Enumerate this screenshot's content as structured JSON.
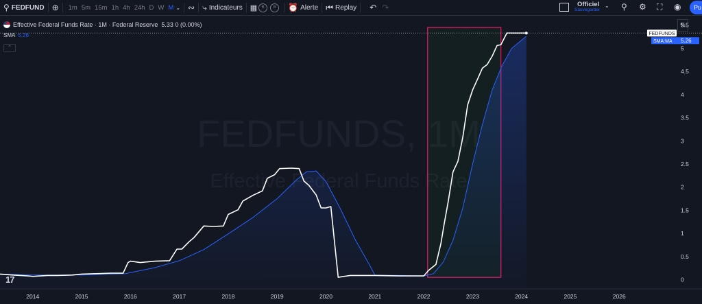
{
  "toolbar": {
    "symbol": "FEDFUND",
    "intervals": [
      "1m",
      "5m",
      "15m",
      "1h",
      "4h",
      "24h",
      "D",
      "W",
      "M"
    ],
    "active_interval": "M",
    "indicators_label": "Indicateurs",
    "circle_b1": "B",
    "circle_b2": "B",
    "alert_label": "Alerte",
    "replay_label": "Replay",
    "save_title": "Officiel",
    "save_sub": "Sauvegarder",
    "publish_label": "Pu"
  },
  "legend": {
    "series_title": "Effective Federal Funds Rate · 1M · Federal Reserve",
    "series_value": "5.33  0 (0.00%)",
    "sma_label": "SMA",
    "sma_value": "5.26"
  },
  "scale_mode": "%",
  "price_tags": {
    "fedfunds": "FEDFUNDS",
    "sma_name": "SMA:MA",
    "sma_value": "5.26"
  },
  "watermark": {
    "line1": "FEDFUNDS, 1M",
    "line2": "Effective Federal Funds Rate"
  },
  "brand": "17",
  "chart_data": {
    "type": "line",
    "colors": {
      "price": "#ffffff",
      "sma": "#2962ff",
      "highlight": "#e91e63",
      "background": "#131722"
    },
    "y_ticks": [
      "0",
      "0.5",
      "1",
      "1.5",
      "2",
      "2.5",
      "3",
      "3.5",
      "4",
      "4.5",
      "5",
      "5.5"
    ],
    "ylim": [
      -0.2,
      5.6
    ],
    "x_ticks": [
      "2014",
      "2015",
      "2016",
      "2017",
      "2018",
      "2019",
      "2020",
      "2021",
      "2022",
      "2023",
      "2024",
      "2025",
      "2026"
    ],
    "xlim": [
      2013.33,
      2026.6
    ],
    "series": [
      {
        "name": "FEDFUNDS",
        "x": [
          2013.33,
          2013.6,
          2013.9,
          2014.0,
          2014.3,
          2014.5,
          2014.8,
          2015.0,
          2015.3,
          2015.6,
          2015.85,
          2015.95,
          2016.0,
          2016.2,
          2016.5,
          2016.8,
          2016.95,
          2017.05,
          2017.2,
          2017.3,
          2017.5,
          2017.7,
          2017.9,
          2018.0,
          2018.2,
          2018.3,
          2018.5,
          2018.7,
          2018.8,
          2018.95,
          2019.05,
          2019.3,
          2019.45,
          2019.55,
          2019.65,
          2019.8,
          2019.9,
          2020.0,
          2020.1,
          2020.25,
          2020.5,
          2021.0,
          2021.5,
          2022.0,
          2022.1,
          2022.25,
          2022.35,
          2022.42,
          2022.5,
          2022.6,
          2022.7,
          2022.8,
          2022.9,
          2023.0,
          2023.1,
          2023.2,
          2023.3,
          2023.4,
          2023.5,
          2023.58,
          2023.7,
          2024.1
        ],
        "values": [
          0.12,
          0.1,
          0.08,
          0.07,
          0.09,
          0.09,
          0.1,
          0.12,
          0.13,
          0.14,
          0.14,
          0.37,
          0.4,
          0.37,
          0.4,
          0.41,
          0.66,
          0.66,
          0.82,
          0.91,
          1.16,
          1.15,
          1.16,
          1.41,
          1.51,
          1.7,
          1.82,
          1.92,
          2.19,
          2.27,
          2.4,
          2.41,
          2.4,
          2.13,
          2.04,
          1.83,
          1.55,
          1.55,
          1.58,
          0.05,
          0.09,
          0.09,
          0.08,
          0.08,
          0.2,
          0.33,
          0.77,
          1.21,
          1.68,
          2.33,
          2.56,
          3.08,
          3.78,
          4.1,
          4.33,
          4.57,
          4.65,
          4.83,
          5.06,
          5.08,
          5.33,
          5.33
        ]
      },
      {
        "name": "SMA",
        "x": [
          2013.33,
          2014.0,
          2015.0,
          2015.9,
          2016.5,
          2017.0,
          2017.5,
          2018.0,
          2018.5,
          2019.0,
          2019.4,
          2019.6,
          2019.8,
          2020.0,
          2020.3,
          2020.6,
          2020.9,
          2021.0,
          2021.5,
          2022.0,
          2022.2,
          2022.4,
          2022.6,
          2022.8,
          2023.0,
          2023.2,
          2023.4,
          2023.6,
          2023.8,
          2024.1
        ],
        "values": [
          0.12,
          0.1,
          0.1,
          0.13,
          0.26,
          0.41,
          0.65,
          0.99,
          1.34,
          1.75,
          2.16,
          2.33,
          2.35,
          2.12,
          1.52,
          0.86,
          0.3,
          0.1,
          0.09,
          0.08,
          0.13,
          0.38,
          0.85,
          1.55,
          2.5,
          3.35,
          4.1,
          4.62,
          5.0,
          5.26
        ]
      }
    ],
    "highlight_rect": {
      "x0": 2022.08,
      "x1": 2023.58,
      "y0": 0.05,
      "y1": 5.45
    }
  }
}
